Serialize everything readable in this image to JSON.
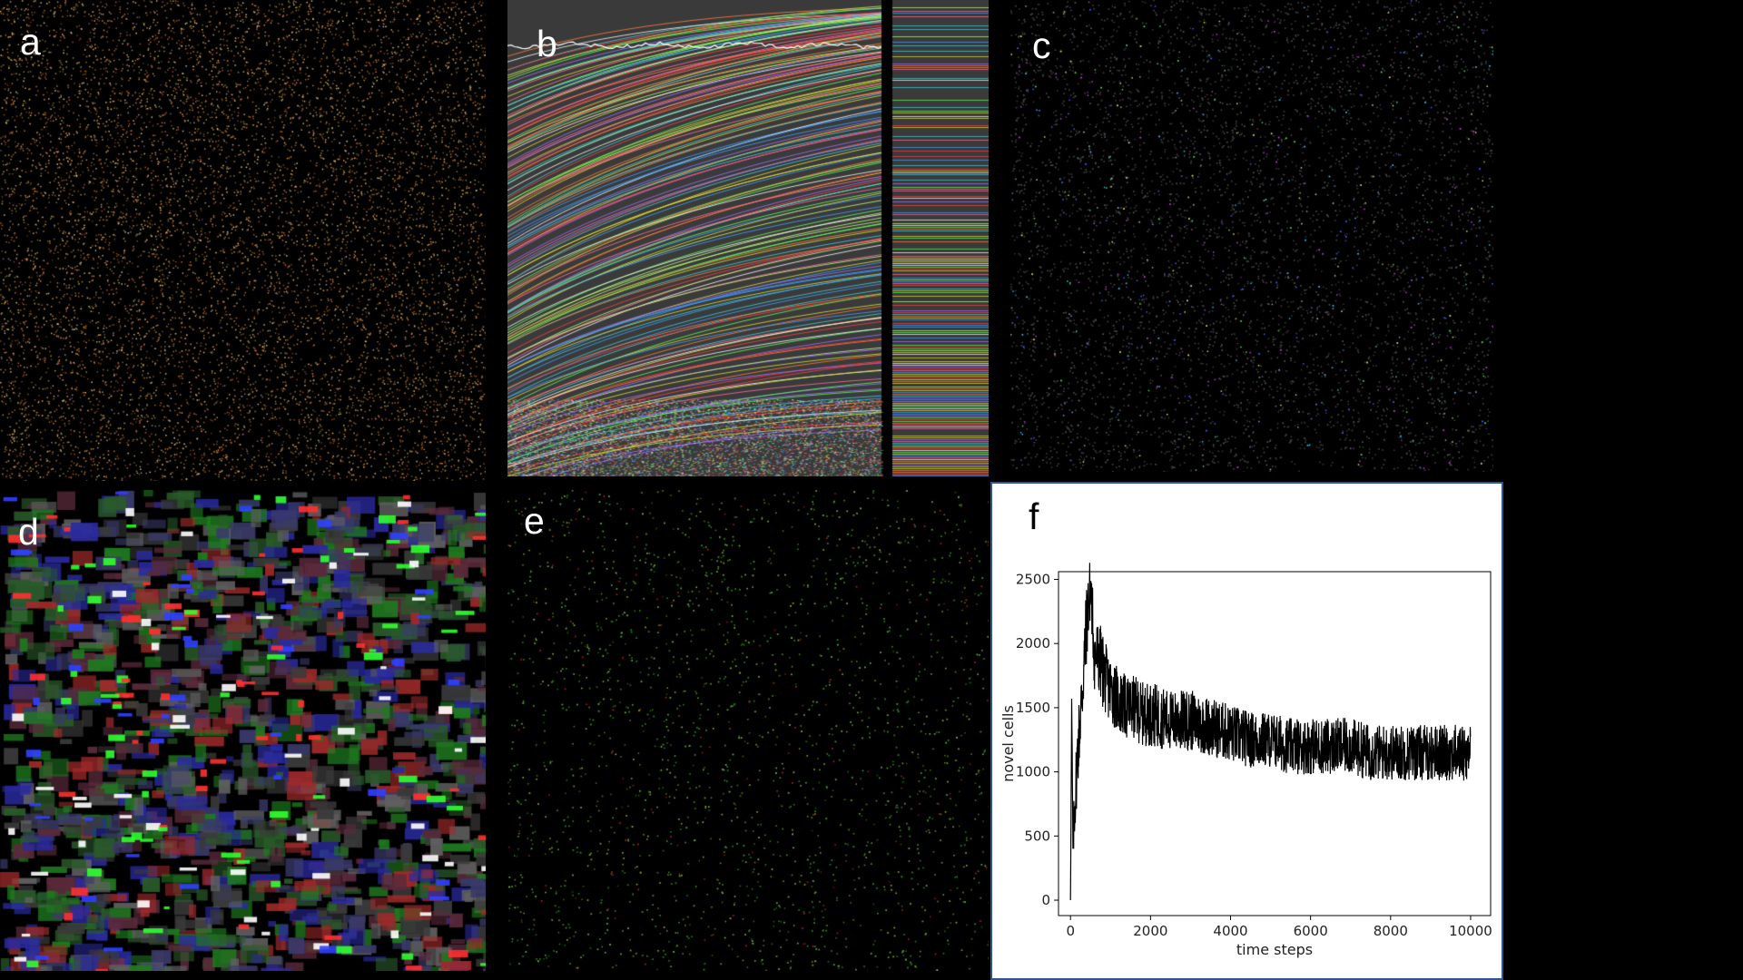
{
  "panels": {
    "a": {
      "label": "a",
      "description_palette": [
        "#d08a2a",
        "#e0a040",
        "#c07020",
        "#f0c060",
        "#7a5cc0"
      ]
    },
    "b": {
      "label": "b"
    },
    "c": {
      "label": "c"
    },
    "d": {
      "label": "d"
    },
    "e": {
      "label": "e"
    },
    "f": {
      "label": "f"
    }
  },
  "colors": {
    "background": "#000000",
    "panel_b_bg": "#3a3a3a",
    "panel_f_border": "#2f5597",
    "line": "#000000"
  },
  "chart_data": {
    "type": "line",
    "title": "",
    "xlabel": "time steps",
    "ylabel": "novel cells",
    "xlim": [
      -300,
      10500
    ],
    "ylim": [
      -120,
      2560
    ],
    "xticks": [
      0,
      2000,
      4000,
      6000,
      8000,
      10000
    ],
    "xtick_labels": [
      "0",
      "2000",
      "4000",
      "6000",
      "8000",
      "10000"
    ],
    "yticks": [
      0,
      500,
      1000,
      1500,
      2000,
      2500
    ],
    "ytick_labels": [
      "0",
      "500",
      "1000",
      "1500",
      "2000",
      "2500"
    ],
    "grid": false,
    "legend": "none",
    "series": [
      {
        "x": [
          0,
          30,
          60,
          100,
          150,
          200,
          250,
          300,
          350,
          400,
          450,
          500,
          550,
          600,
          700,
          800,
          900,
          1000,
          1200,
          1400,
          1600,
          1800,
          2000,
          2500,
          3000,
          3500,
          4000,
          4500,
          5000,
          5500,
          6000,
          6500,
          7000,
          7500,
          8000,
          8500,
          9000,
          9500,
          10000
        ],
        "y": [
          0,
          1570,
          400,
          700,
          1000,
          1250,
          1450,
          1650,
          1900,
          2150,
          2300,
          2450,
          2200,
          1900,
          1900,
          1800,
          1700,
          1650,
          1550,
          1500,
          1500,
          1450,
          1450,
          1400,
          1400,
          1350,
          1300,
          1250,
          1250,
          1200,
          1200,
          1200,
          1200,
          1150,
          1150,
          1150,
          1150,
          1150,
          1150
        ],
        "spread": [
          0,
          0,
          200,
          250,
          300,
          300,
          300,
          320,
          320,
          320,
          300,
          250,
          280,
          300,
          300,
          300,
          280,
          260,
          260,
          250,
          250,
          250,
          250,
          240,
          240,
          230,
          230,
          220,
          220,
          220,
          220,
          220,
          220,
          220,
          220,
          220,
          220,
          220,
          220
        ]
      }
    ]
  }
}
